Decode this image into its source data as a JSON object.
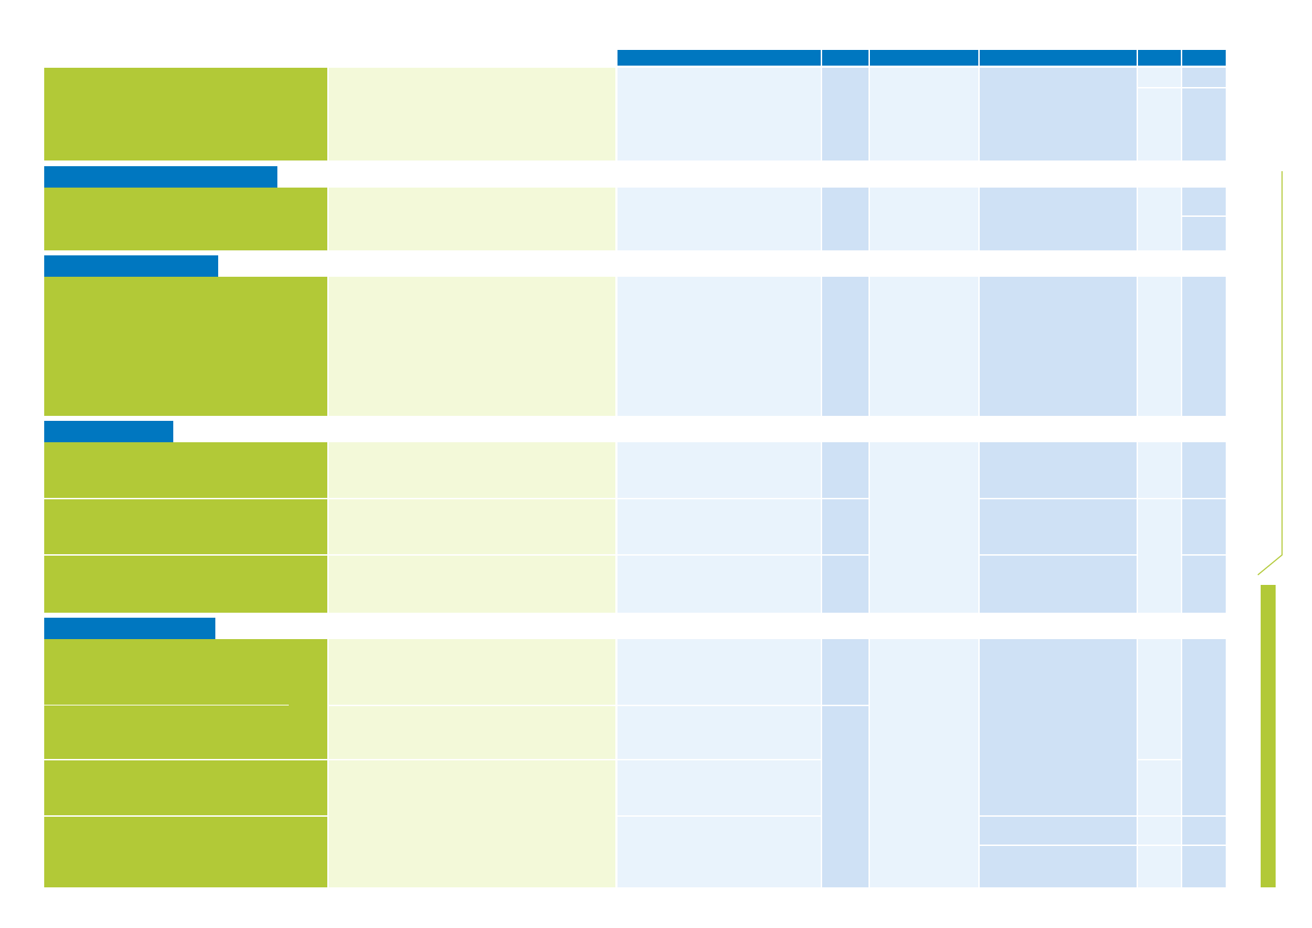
{
  "colors": {
    "header_blue": "#0077c0",
    "green": "#b2c937",
    "light_green": "#f3f9d9",
    "light_blue": "#e9f3fc",
    "mid_blue": "#cfe1f5"
  },
  "table": {
    "column_headers": [
      "",
      "",
      "",
      "",
      "",
      ""
    ],
    "sections": [
      {
        "title": "",
        "rows": 1
      },
      {
        "title": "",
        "rows": 1
      },
      {
        "title": "",
        "rows": 1
      },
      {
        "title": "",
        "rows": 3
      },
      {
        "title": "",
        "rows": 4
      }
    ]
  },
  "sidebar": {
    "label": ""
  }
}
